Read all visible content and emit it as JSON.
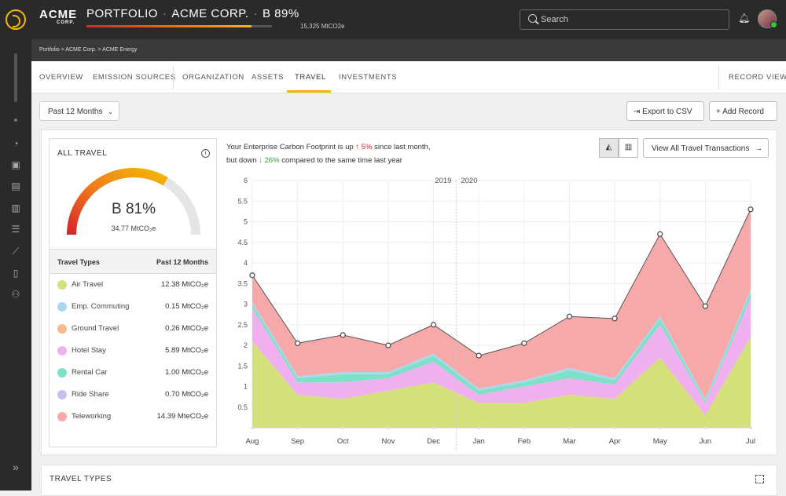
{
  "brand": {
    "name": "ACME",
    "sub": "CORP."
  },
  "header": {
    "title_portfolio": "PORTFOLIO",
    "title_company": "ACME CORP.",
    "title_grade": "B 89%",
    "progress": 0.89,
    "progress_value": "15,325 MtCO2e",
    "search_placeholder": "Search"
  },
  "sidebar": {
    "icons": [
      "dashboard-icon",
      "briefcase-icon",
      "clipboard-icon",
      "bar-chart-icon",
      "list-check-icon",
      "trend-icon",
      "document-icon",
      "user-settings-icon"
    ],
    "collapse_icon": "chevrons-right-icon"
  },
  "breadcrumb": "Portfolio > ACME Corp. > ACME Energy",
  "tabs": [
    "OVERVIEW",
    "EMISSION SOURCES",
    "ORGANIZATION",
    "ASSETS",
    "TRAVEL",
    "INVESTMENTS"
  ],
  "active_tab": "TRAVEL",
  "record_view": "RECORD VIEW",
  "toolbar": {
    "period": "Past 12 Months",
    "export": "Export to CSV",
    "add": "Add Record"
  },
  "summary": {
    "title": "ALL TRAVEL",
    "grade": "B 81%",
    "total": "34.77 MtCO₂e",
    "gauge_fraction": 0.81
  },
  "table": {
    "col1": "Travel Types",
    "col2": "Past 12 Months",
    "rows": [
      {
        "name": "Air Travel",
        "value": "12.38 MtCO₂e",
        "color": "#d4e07a"
      },
      {
        "name": "Emp. Commuting",
        "value": "0.15 MtCO₂e",
        "color": "#a8d8f0"
      },
      {
        "name": "Ground Travel",
        "value": "0.26 MtCO₂e",
        "color": "#f5b98a"
      },
      {
        "name": "Hotel Stay",
        "value": "5.89 MtCO₂e",
        "color": "#f0b0f0"
      },
      {
        "name": "Rental Car",
        "value": "1.00 MtCO₂e",
        "color": "#7fe0c8"
      },
      {
        "name": "Ride Share",
        "value": "0.70 MtCO₂e",
        "color": "#c8c0f0"
      },
      {
        "name": "Teleworking",
        "value": "14.39 MteCO₂e",
        "color": "#f7a8a8"
      }
    ]
  },
  "message": {
    "line1_pre": "Your Enterprise Carbon Footprint is up",
    "up_pct": "5%",
    "line1_post": "since last month,",
    "line2_pre": "but down",
    "down_pct": "26%",
    "line2_post": "compared to the same time last year"
  },
  "view_all": "View All Travel Transactions",
  "chart_data": {
    "type": "area",
    "categories": [
      "Aug",
      "Sep",
      "Oct",
      "Nov",
      "Dec",
      "Jan",
      "Feb",
      "Mar",
      "Apr",
      "May",
      "Jun",
      "Jul"
    ],
    "year_labels": [
      "2019",
      "2020"
    ],
    "y_ticks": [
      "0.5",
      "1",
      "1.5",
      "2",
      "2.5",
      "3",
      "3.5",
      "4",
      "4.5",
      "5",
      "5.5",
      "6"
    ],
    "ylim": [
      0,
      6
    ],
    "series": [
      {
        "name": "Air Travel",
        "color": "#d4e07a",
        "values": [
          2.1,
          0.8,
          0.7,
          0.9,
          1.1,
          0.6,
          0.6,
          0.8,
          0.7,
          1.7,
          0.3,
          2.2
        ]
      },
      {
        "name": "Hotel Stay",
        "color": "#f0b0f0",
        "values": [
          0.8,
          0.3,
          0.4,
          0.3,
          0.5,
          0.2,
          0.4,
          0.4,
          0.35,
          0.8,
          0.3,
          0.95
        ]
      },
      {
        "name": "Rental Car",
        "color": "#7fe0c8",
        "values": [
          0.1,
          0.1,
          0.2,
          0.1,
          0.15,
          0.1,
          0.1,
          0.2,
          0.1,
          0.15,
          0.05,
          0.15
        ]
      },
      {
        "name": "Emp. Commuting",
        "color": "#a8d8f0",
        "values": [
          0.05,
          0.05,
          0.05,
          0.05,
          0.05,
          0.05,
          0.05,
          0.05,
          0.05,
          0.05,
          0.05,
          0.05
        ]
      },
      {
        "name": "Teleworking",
        "color": "#f7a8a8",
        "values": [
          0.65,
          0.8,
          0.9,
          0.65,
          0.7,
          0.8,
          0.9,
          1.25,
          1.45,
          2.0,
          2.25,
          1.95
        ]
      }
    ],
    "totals": [
      3.7,
      2.05,
      2.25,
      2.0,
      2.5,
      1.75,
      2.05,
      2.7,
      2.65,
      4.7,
      2.95,
      5.3
    ],
    "grid": true
  },
  "bottom": {
    "title": "TRAVEL TYPES"
  }
}
